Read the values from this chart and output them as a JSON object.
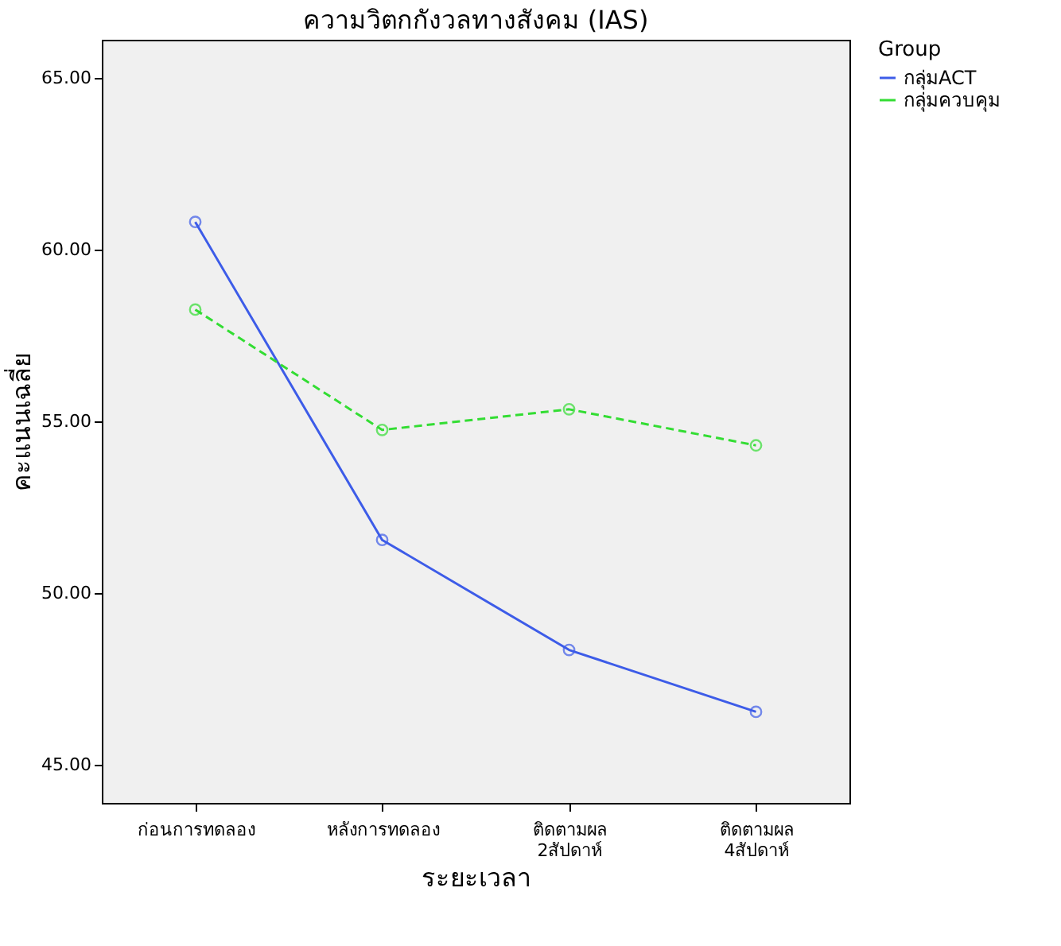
{
  "chart_data": {
    "type": "line",
    "title": "ความวิตกกังวลทางสังคม (IAS)",
    "xlabel": "ระยะเวลา",
    "ylabel": "คะแนนเฉลี่ย",
    "legend_title": "Group",
    "categories": [
      "ก่อนการทดลอง",
      "หลังการทดลอง",
      "ติดตามผล\n2สัปดาห์",
      "ติดตามผล\n4สัปดาห์"
    ],
    "series": [
      {
        "name": "กลุ่มACT",
        "color": "#3d5ce8",
        "line_style": "solid",
        "values": [
          60.8,
          51.55,
          48.35,
          46.55
        ]
      },
      {
        "name": "กลุ่มควบคุม",
        "color": "#33dd33",
        "line_style": "dashed",
        "values": [
          58.25,
          54.75,
          55.35,
          54.3
        ]
      }
    ],
    "ylim": [
      43.9,
      66.1
    ],
    "yticks": [
      {
        "value": 45,
        "label": "45.00"
      },
      {
        "value": 50,
        "label": "50.00"
      },
      {
        "value": 55,
        "label": "55.00"
      },
      {
        "value": 60,
        "label": "60.00"
      },
      {
        "value": 65,
        "label": "65.00"
      }
    ],
    "marker": "circle",
    "grid": false,
    "legend": "top right"
  }
}
